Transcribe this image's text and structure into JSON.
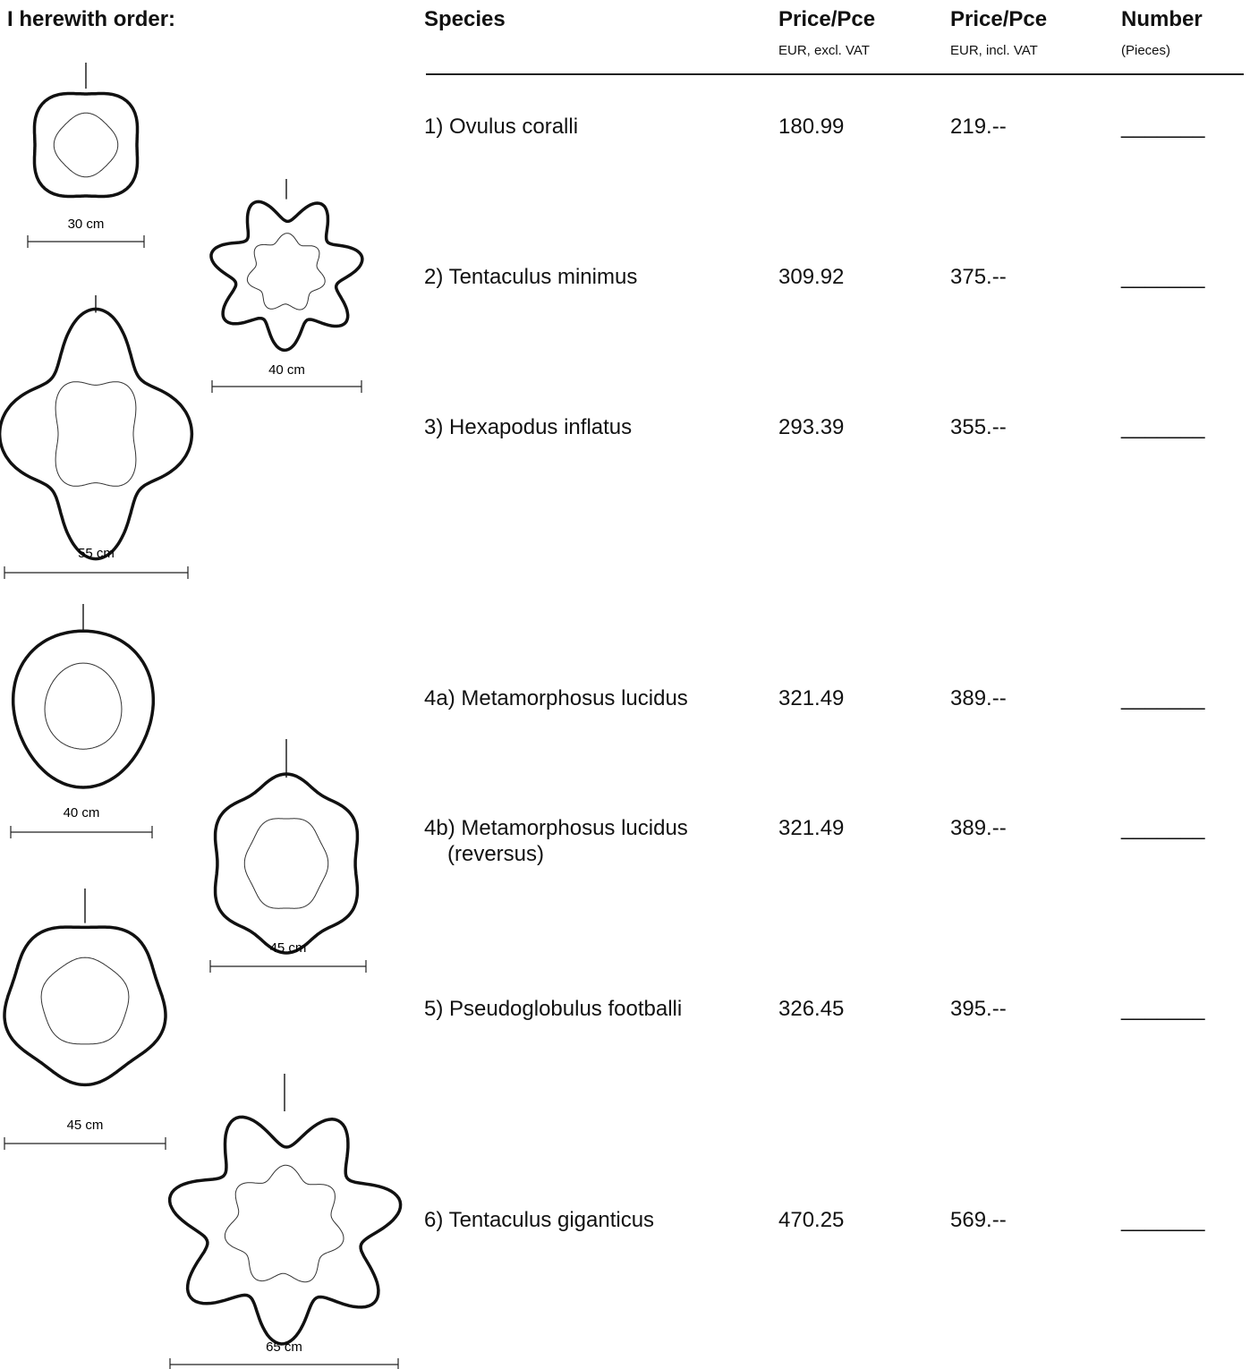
{
  "header": {
    "title": "I herewith order:"
  },
  "table": {
    "columns": [
      {
        "title": "Species",
        "subtitle": null
      },
      {
        "title": "Price/Pce",
        "subtitle": "EUR, excl. VAT"
      },
      {
        "title": "Price/Pce",
        "subtitle": "EUR, incl. VAT"
      },
      {
        "title": "Number",
        "subtitle": "(Pieces)"
      }
    ],
    "rows": [
      {
        "species": [
          "1) Ovulus coralli"
        ],
        "price_excl": "180.99",
        "price_incl": "219.--",
        "number": "_______"
      },
      {
        "species": [
          "2) Tentaculus minimus"
        ],
        "price_excl": "309.92",
        "price_incl": "375.--",
        "number": "_______"
      },
      {
        "species": [
          "3) Hexapodus inflatus"
        ],
        "price_excl": "293.39",
        "price_incl": "355.--",
        "number": "_______"
      },
      {
        "species": [
          "4a) Metamorphosus lucidus"
        ],
        "price_excl": "321.49",
        "price_incl": "389.--",
        "number": "_______"
      },
      {
        "species": [
          "4b) Metamorphosus lucidus",
          "(reversus)"
        ],
        "price_excl": "321.49",
        "price_incl": "389.--",
        "number": "_______"
      },
      {
        "species": [
          "5) Pseudoglobulus footballi"
        ],
        "price_excl": "326.45",
        "price_incl": "395.--",
        "number": "_______"
      },
      {
        "species": [
          "6) Tentaculus giganticus"
        ],
        "price_excl": "470.25",
        "price_incl": "569.--",
        "number": "_______"
      }
    ]
  },
  "illustrations": [
    {
      "size": "30 cm"
    },
    {
      "size": "40 cm"
    },
    {
      "size": "55 cm"
    },
    {
      "size": "40 cm"
    },
    {
      "size": "45 cm"
    },
    {
      "size": "45 cm"
    },
    {
      "size": "65 cm"
    }
  ]
}
